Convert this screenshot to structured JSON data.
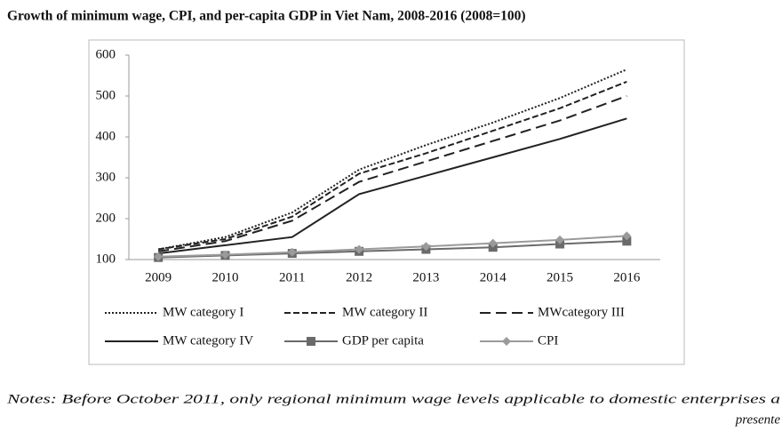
{
  "chart_data": {
    "type": "line",
    "title": "Growth of minimum wage, CPI, and per-capita GDP in Viet Nam, 2008-2016 (2008=100)",
    "categories": [
      "2009",
      "2010",
      "2011",
      "2012",
      "2013",
      "2014",
      "2015",
      "2016"
    ],
    "series": [
      {
        "name": "MW category I",
        "color": "#222222",
        "style": "dotted",
        "values": [
          125,
          155,
          215,
          320,
          380,
          435,
          495,
          565
        ]
      },
      {
        "name": "MW category II",
        "color": "#222222",
        "style": "dashed",
        "values": [
          125,
          150,
          205,
          310,
          360,
          415,
          470,
          535
        ]
      },
      {
        "name": "MWcategory III",
        "color": "#222222",
        "style": "longdash",
        "values": [
          120,
          145,
          195,
          290,
          340,
          390,
          440,
          500
        ]
      },
      {
        "name": "MW category IV",
        "color": "#222222",
        "style": "solid",
        "values": [
          115,
          135,
          155,
          260,
          305,
          350,
          395,
          445
        ]
      },
      {
        "name": "GDP per capita",
        "color": "#6a6a6a",
        "style": "solid",
        "marker": "square",
        "values": [
          105,
          110,
          115,
          120,
          125,
          130,
          138,
          145
        ]
      },
      {
        "name": "CPI",
        "color": "#9a9a9a",
        "style": "solid",
        "marker": "diamond",
        "values": [
          107,
          112,
          118,
          125,
          132,
          140,
          148,
          158
        ]
      }
    ],
    "ylim": [
      100,
      600
    ],
    "yticks": [
      100,
      200,
      300,
      400,
      500,
      600
    ],
    "grid": false,
    "legend": "bottom",
    "notes": [
      "Notes: Before October 2011, only regional minimum wage levels applicable to domestic enterprises a",
      "presente"
    ]
  }
}
